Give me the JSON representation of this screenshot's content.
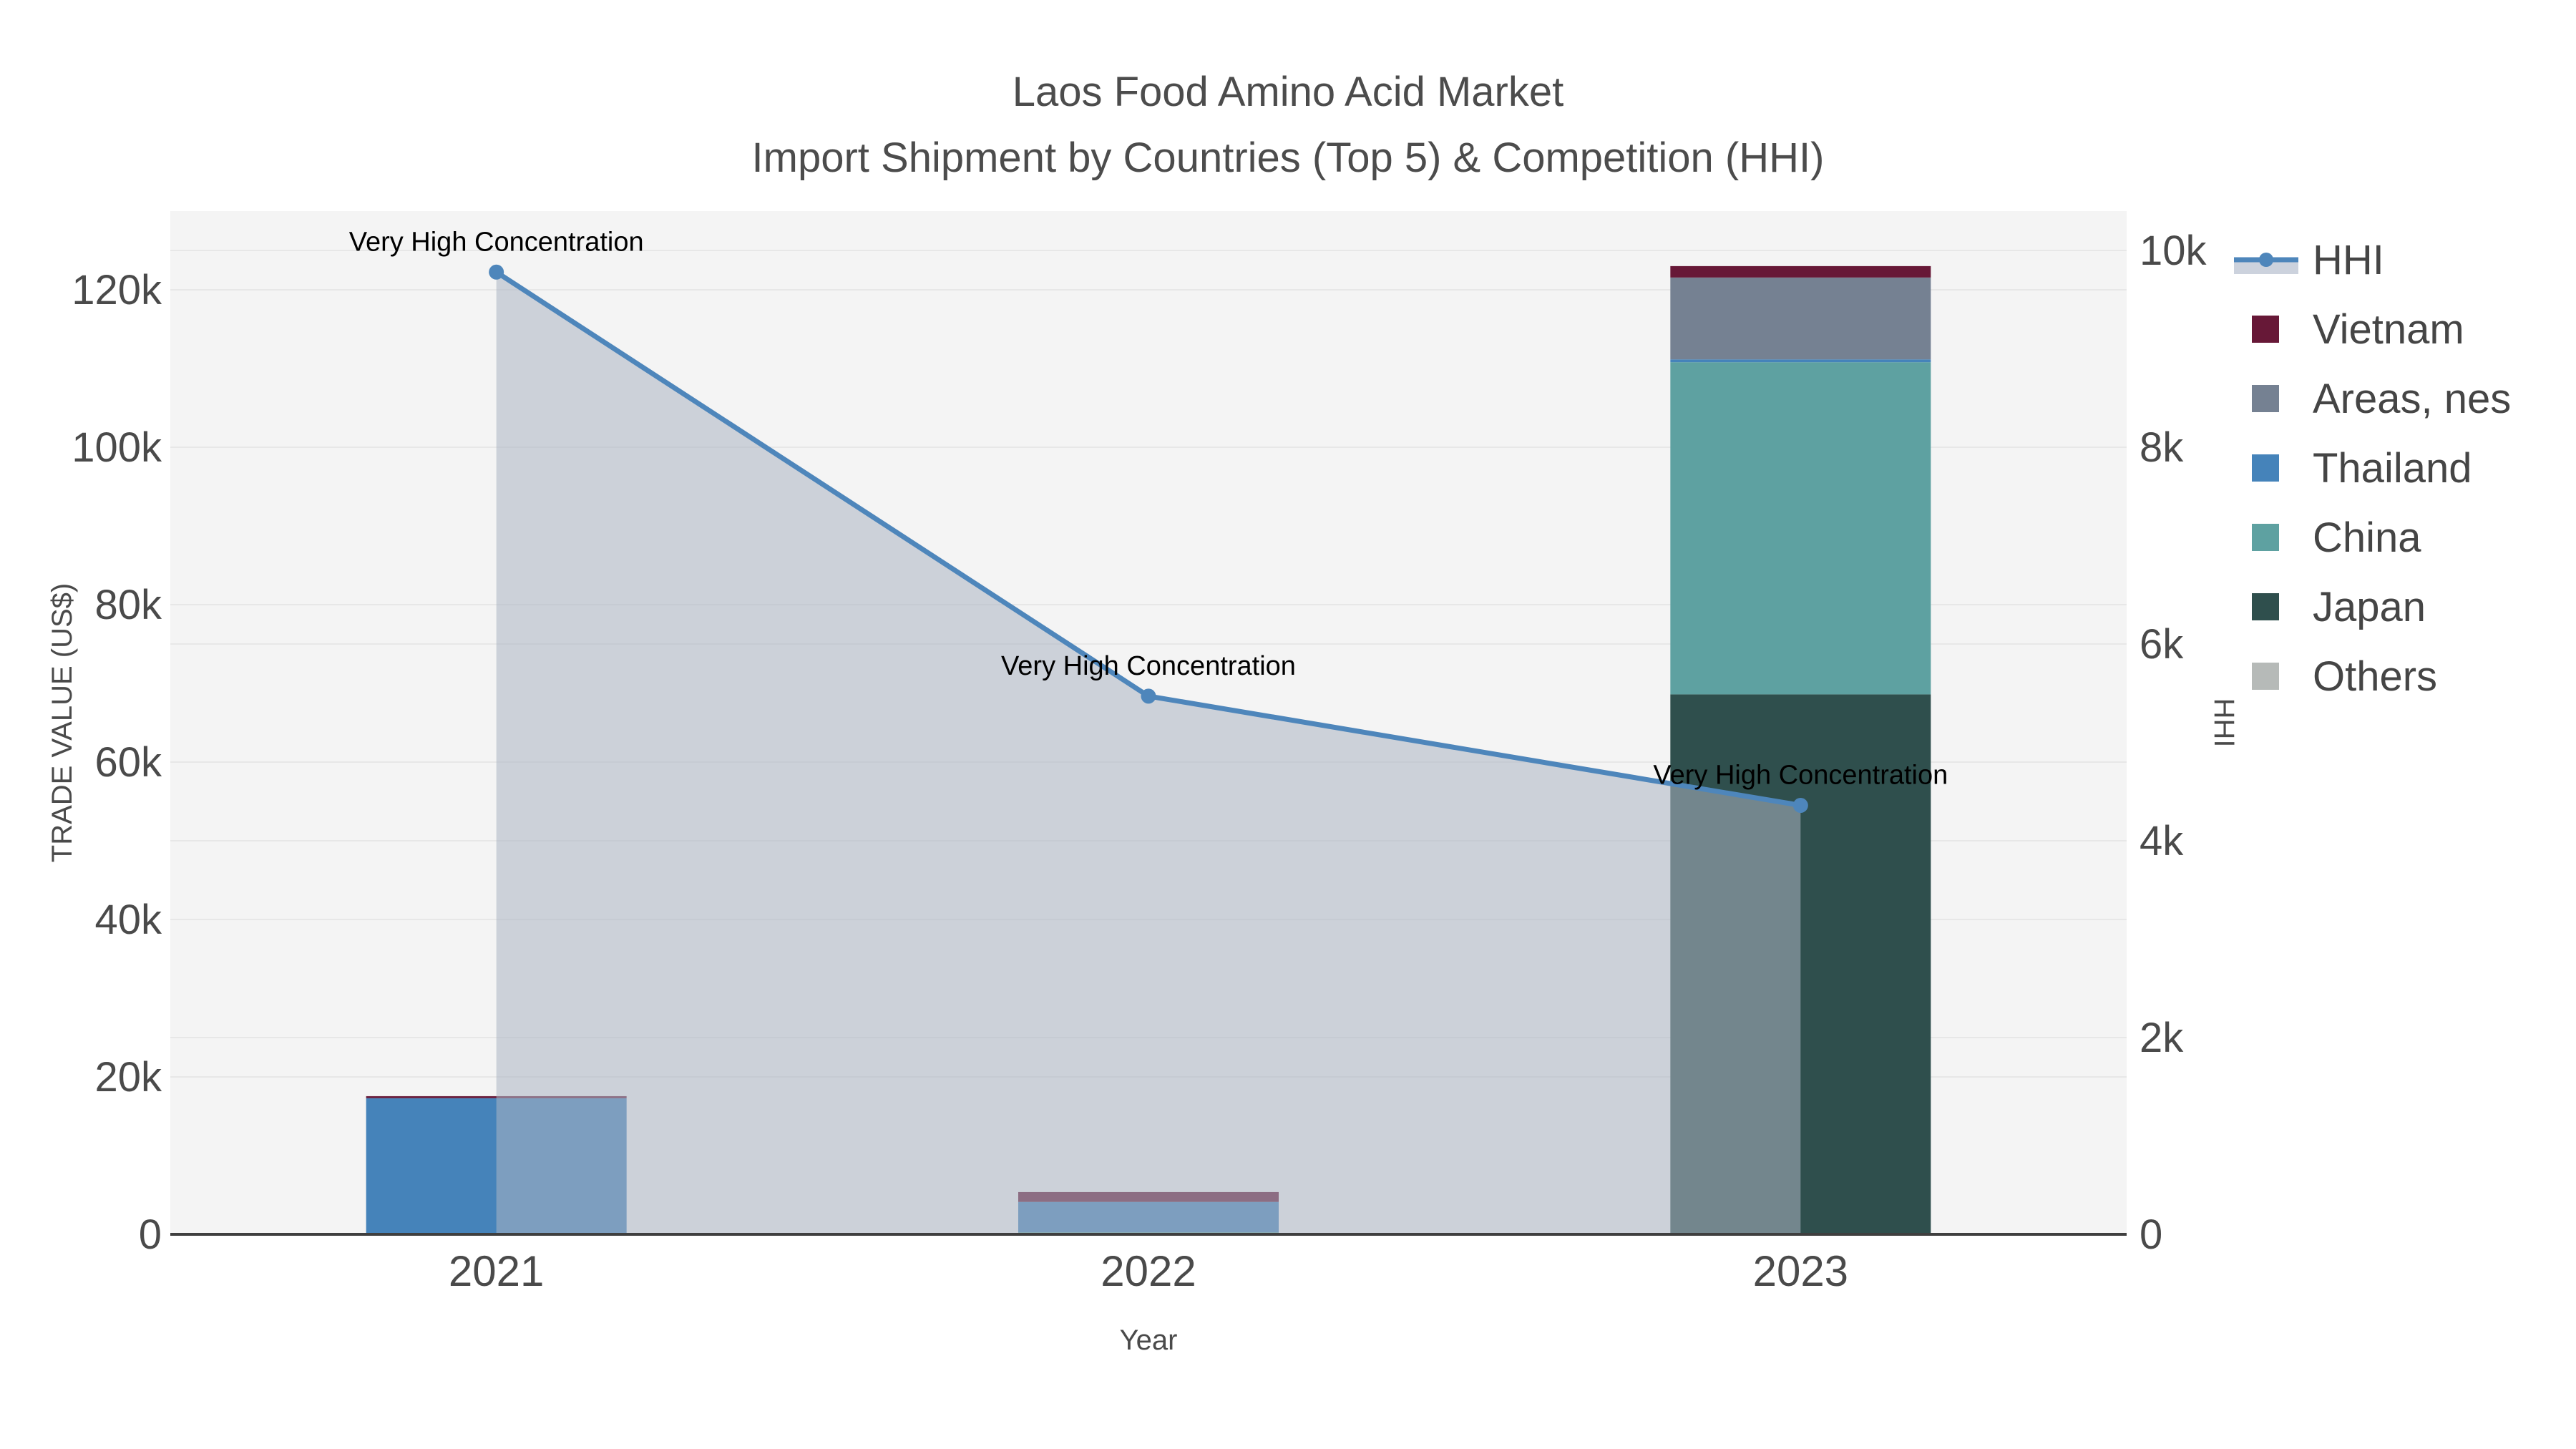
{
  "title": {
    "line1": "Laos Food Amino Acid Market",
    "line2": "Import Shipment by Countries (Top 5) & Competition (HHI)"
  },
  "chart_data": {
    "type": "bar+line",
    "title": "Laos Food Amino Acid Market — Import Shipment by Countries (Top 5) & Competition (HHI)",
    "categories": [
      "2021",
      "2022",
      "2023"
    ],
    "xlabel": "Year",
    "bar_axis": {
      "label": "TRADE VALUE (US$)",
      "side": "left",
      "ticks": [
        "0",
        "20k",
        "40k",
        "60k",
        "80k",
        "100k",
        "120k"
      ],
      "tick_values": [
        0,
        20000,
        40000,
        60000,
        80000,
        100000,
        120000
      ],
      "range": [
        0,
        130000
      ]
    },
    "line_axis": {
      "label": "HHI",
      "side": "right",
      "ticks": [
        "0",
        "2k",
        "4k",
        "6k",
        "8k",
        "10k"
      ],
      "tick_values": [
        0,
        2000,
        4000,
        6000,
        8000,
        10000
      ],
      "range": [
        0,
        10400
      ]
    },
    "series": [
      {
        "name": "Vietnam",
        "color": "#671837",
        "values": [
          250,
          1250,
          1450
        ]
      },
      {
        "name": "Areas, nes",
        "color": "#758192",
        "values": [
          0,
          0,
          10400
        ]
      },
      {
        "name": "Thailand",
        "color": "#4583ba",
        "values": [
          17300,
          3850,
          360
        ]
      },
      {
        "name": "China",
        "color": "#5ea1a1",
        "values": [
          0,
          270,
          42200
        ]
      },
      {
        "name": "Japan",
        "color": "#2f4f4d",
        "values": [
          0,
          0,
          68600
        ]
      },
      {
        "name": "Others",
        "color": "#b6bab8",
        "values": [
          0,
          0,
          0
        ]
      }
    ],
    "stack_order_bottom_to_top": [
      "Others",
      "Japan",
      "China",
      "Thailand",
      "Areas, nes",
      "Vietnam"
    ],
    "line_series": {
      "name": "HHI",
      "color": "#4e86bb",
      "fill_color": "rgba(171,180,195,0.55)",
      "values": [
        9780,
        5470,
        4360
      ]
    },
    "annotations": [
      {
        "text": "Very High Concentration",
        "category": "2021"
      },
      {
        "text": "Very High Concentration",
        "category": "2022"
      },
      {
        "text": "Very High Concentration",
        "category": "2023"
      }
    ],
    "legend": {
      "position": "right",
      "entries": [
        "HHI",
        "Vietnam",
        "Areas, nes",
        "Thailand",
        "China",
        "Japan",
        "Others"
      ]
    },
    "grid": true,
    "plot_bg": "#f4f4f4",
    "grid_color": "#e7e7e7",
    "axis_line_color": "#3f3f3f",
    "legend_hhi_fill": "#ccd2dd"
  }
}
